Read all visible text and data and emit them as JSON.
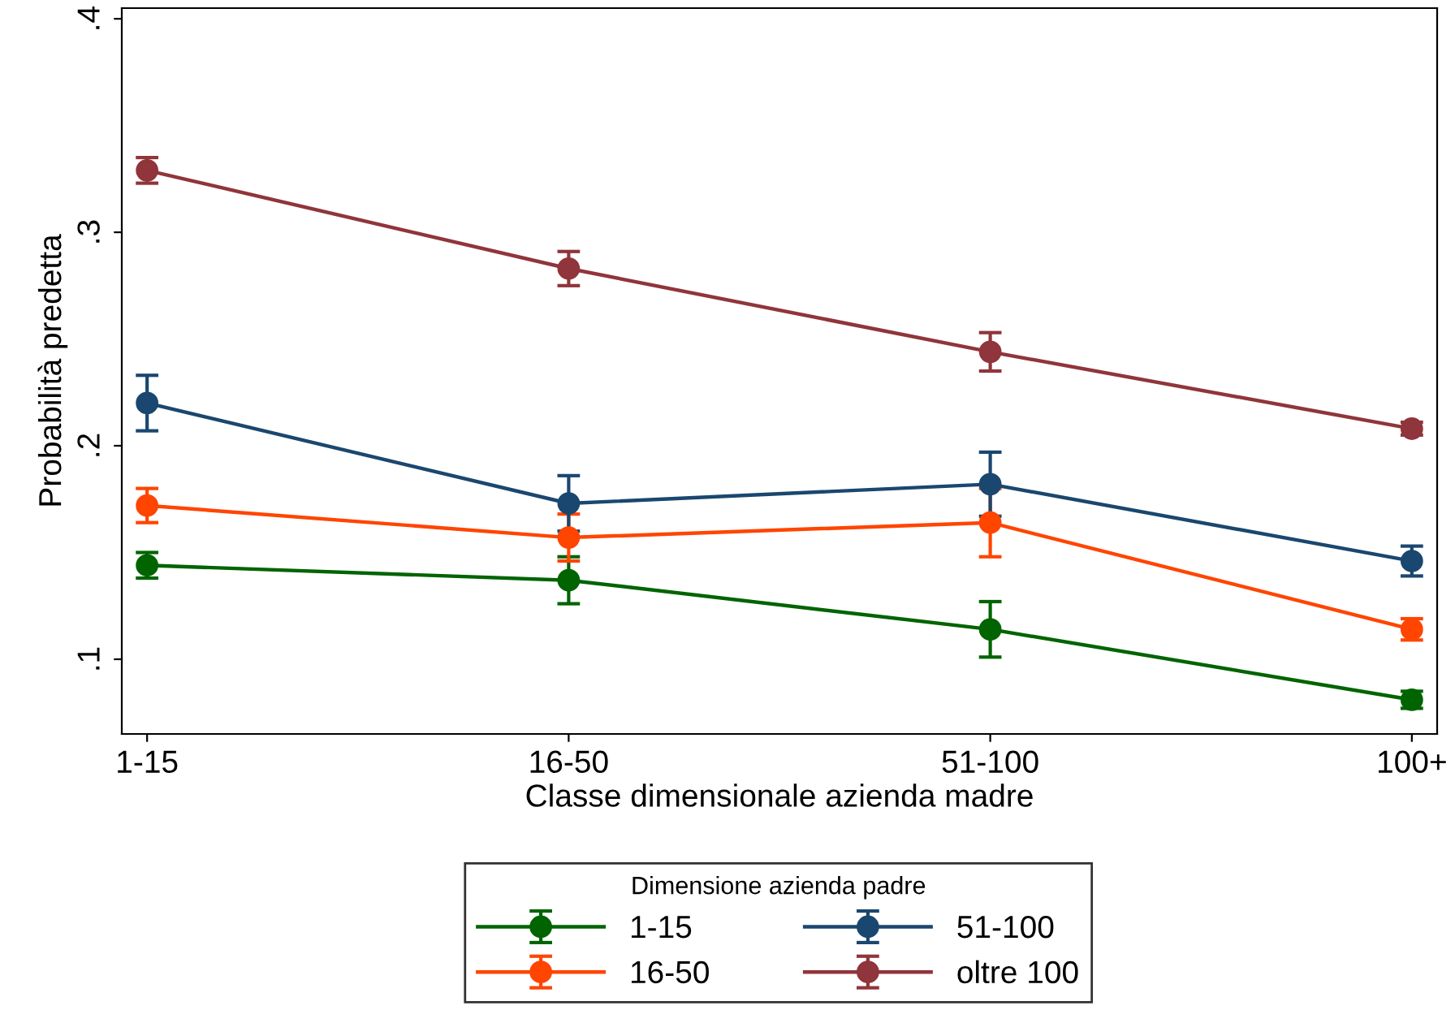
{
  "chart_data": {
    "type": "line",
    "xlabel": "Classe dimensionale azienda madre",
    "ylabel": "Probabilità predetta",
    "legend_title": "Dimensione azienda padre",
    "categories": [
      "1-15",
      "16-50",
      "51-100",
      "100+"
    ],
    "series": [
      {
        "name": "1-15",
        "color": "#006400",
        "values": [
          0.144,
          0.137,
          0.114,
          0.081
        ],
        "errors": [
          0.006,
          0.011,
          0.013,
          0.004
        ]
      },
      {
        "name": "16-50",
        "color": "#ff4500",
        "values": [
          0.172,
          0.157,
          0.164,
          0.114
        ],
        "errors": [
          0.008,
          0.011,
          0.016,
          0.005
        ]
      },
      {
        "name": "51-100",
        "color": "#1a476f",
        "values": [
          0.22,
          0.173,
          0.182,
          0.146
        ],
        "errors": [
          0.013,
          0.013,
          0.015,
          0.007
        ]
      },
      {
        "name": "oltre 100",
        "color": "#90353b",
        "values": [
          0.329,
          0.283,
          0.244,
          0.208
        ],
        "errors": [
          0.006,
          0.008,
          0.009,
          0.003
        ]
      }
    ],
    "ylim": [
      0.065,
      0.405
    ],
    "yticks": [
      {
        "value": 0.1,
        "label": ".1"
      },
      {
        "value": 0.2,
        "label": ".2"
      },
      {
        "value": 0.3,
        "label": ".3"
      },
      {
        "value": 0.4,
        "label": ".4"
      }
    ],
    "grid": false,
    "legend": "bottom",
    "marker": "circle",
    "line_style": "solid"
  }
}
